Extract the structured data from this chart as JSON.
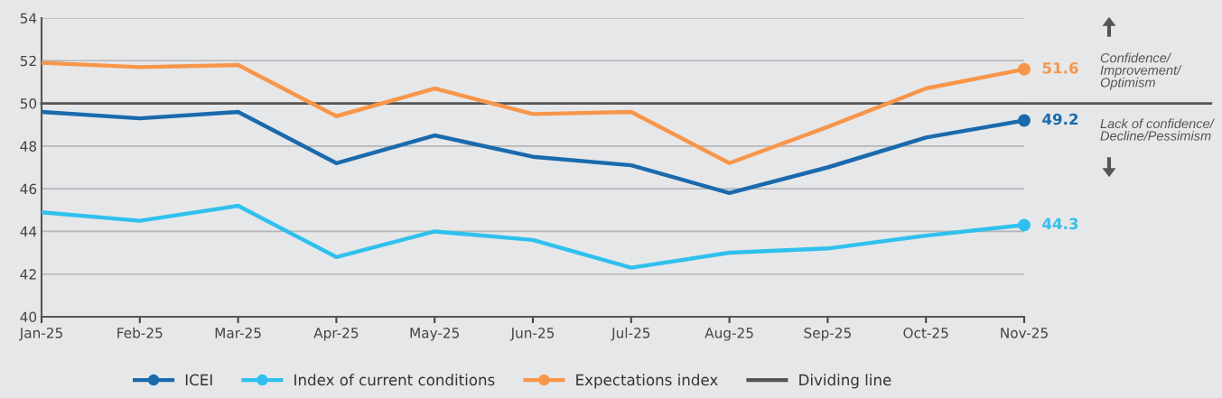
{
  "chart_data": {
    "type": "line",
    "categories": [
      "Jan-25",
      "Feb-25",
      "Mar-25",
      "Apr-25",
      "May-25",
      "Jun-25",
      "Jul-25",
      "Aug-25",
      "Sep-25",
      "Oct-25",
      "Nov-25"
    ],
    "series": [
      {
        "name": "ICEI",
        "color": "#1a6aad",
        "values": [
          49.6,
          49.3,
          49.6,
          47.2,
          48.5,
          47.5,
          47.1,
          45.8,
          47.0,
          48.4,
          49.2
        ],
        "value_labels": [
          null,
          null,
          null,
          null,
          null,
          null,
          null,
          null,
          null,
          null,
          "49.2"
        ]
      },
      {
        "name": "Index of current conditions",
        "color": "#30c0ee",
        "values": [
          44.9,
          44.5,
          45.2,
          42.8,
          44.0,
          43.6,
          42.3,
          43.0,
          43.2,
          43.8,
          44.3
        ],
        "value_labels": [
          null,
          null,
          null,
          null,
          null,
          null,
          null,
          null,
          null,
          null,
          "44.3"
        ]
      },
      {
        "name": "Expectations index",
        "color": "#f7964a",
        "values": [
          51.9,
          51.7,
          51.8,
          49.4,
          50.7,
          49.5,
          49.6,
          47.2,
          48.9,
          50.7,
          51.6
        ],
        "value_labels": [
          null,
          null,
          null,
          null,
          null,
          null,
          null,
          null,
          null,
          null,
          "51.6"
        ]
      }
    ],
    "ref_lines": [
      {
        "axis": "y",
        "value": 50,
        "label": "Dividing line",
        "color": "#555555",
        "line_style": "solid"
      }
    ],
    "ylim": [
      40,
      54
    ],
    "yticks": [
      40,
      42,
      44,
      46,
      48,
      50,
      52,
      54
    ],
    "grid": "y",
    "legend": "bottom",
    "line_style": "solid",
    "annotations": [
      "Confidence/\nImprovement/\nOptimism",
      "Lack of confidence/\nDecline/Pessimism"
    ]
  }
}
